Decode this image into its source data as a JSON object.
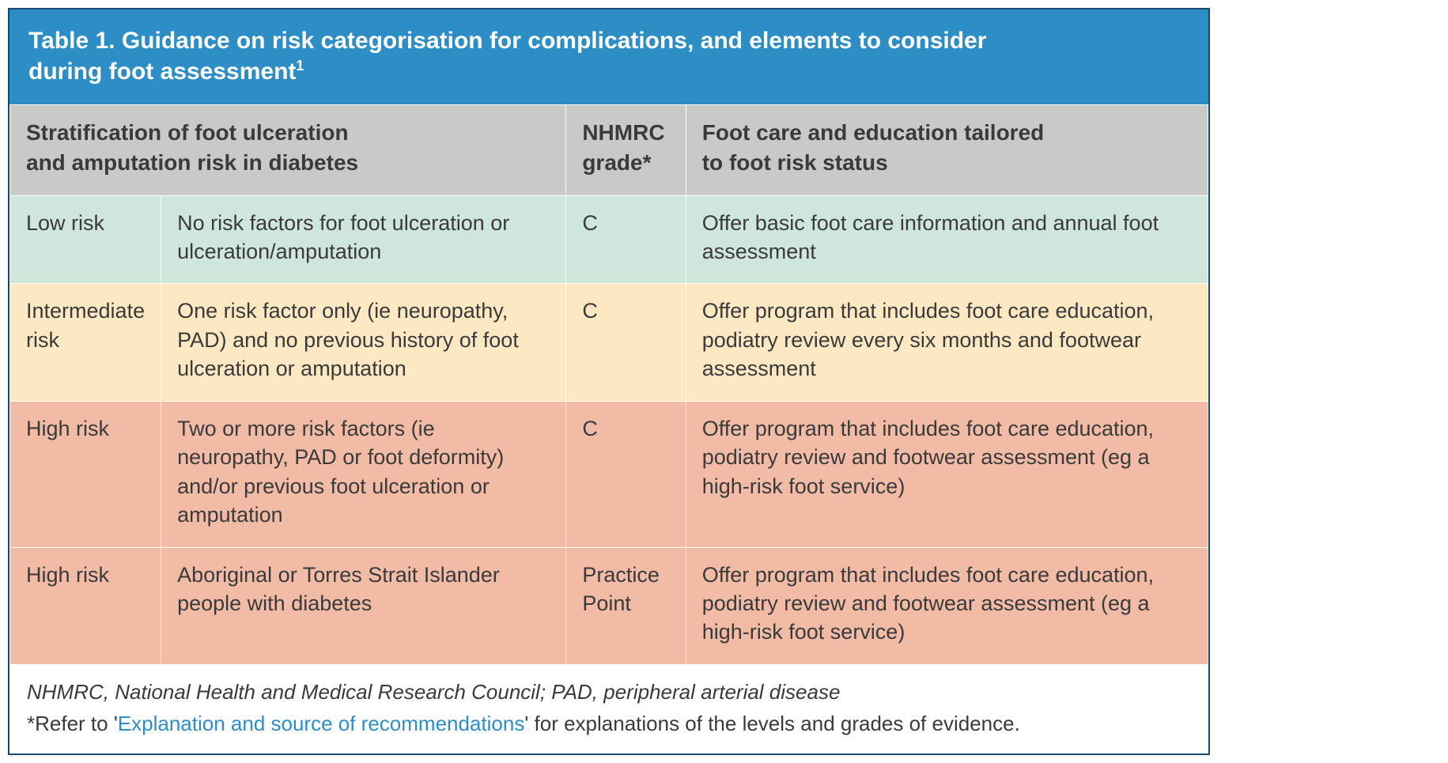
{
  "colors": {
    "border": "#18486b",
    "title_bg": "#2d8ec6",
    "title_text": "#ffffff",
    "header_bg": "#c9c9c9",
    "row_low_bg": "#cfe6dd",
    "row_mid_bg": "#fce9c4",
    "row_high_bg": "#f1bba6",
    "body_text": "#3a3a3a",
    "link": "#2d8ec6"
  },
  "table": {
    "title_line1": "Table 1. Guidance on risk categorisation for complications, and elements to consider",
    "title_line2": "during foot assessment",
    "title_sup": "1",
    "col_widths_pct": [
      12,
      34,
      10,
      44
    ],
    "headers": {
      "strat_line1": "Stratification of foot ulceration",
      "strat_line2": "and amputation risk in diabetes",
      "grade_line1": "NHMRC",
      "grade_line2": "grade*",
      "care_line1": "Foot care and education tailored",
      "care_line2": "to foot risk status"
    },
    "rows": [
      {
        "bg_key": "row_low_bg",
        "risk": "Low risk",
        "desc": "No risk factors for foot ulceration or ulceration/amputation",
        "grade": "C",
        "care": "Offer basic foot care information and annual foot assessment"
      },
      {
        "bg_key": "row_mid_bg",
        "risk": "Intermediate risk",
        "desc": "One risk factor only (ie neuropathy, PAD) and no previous history of foot ulceration or amputation",
        "grade": "C",
        "care": "Offer program that includes foot care education, podiatry review every six months and footwear assessment"
      },
      {
        "bg_key": "row_high_bg",
        "risk": "High risk",
        "desc": "Two or more risk factors (ie neuropathy, PAD or foot deformity) and/or previous foot ulceration or amputation",
        "grade": "C",
        "care": "Offer program that includes foot care education, podiatry review and footwear assessment (eg a high-risk foot service)"
      },
      {
        "bg_key": "row_high_bg",
        "risk": "High risk",
        "desc": "Aboriginal or Torres Strait Islander people with diabetes",
        "grade": "Practice Point",
        "care": "Offer program that includes foot care education, podiatry review and footwear assessment (eg a high-risk foot service)"
      }
    ]
  },
  "footer": {
    "abbr": "NHMRC, National Health and Medical Research Council; PAD, peripheral arterial disease",
    "note_prefix": "*Refer to '",
    "note_link": "Explanation and source of recommendations",
    "note_suffix": "' for explanations of the levels and grades of evidence."
  }
}
